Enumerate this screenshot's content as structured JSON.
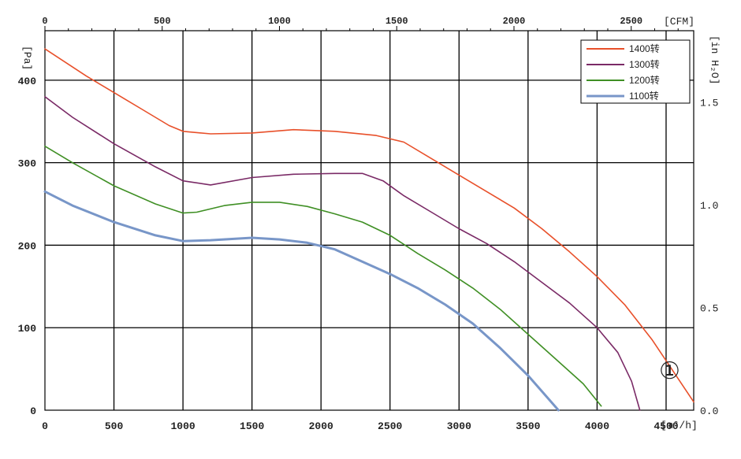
{
  "chart_data": {
    "type": "line",
    "x_unit_label": "[m³/h]",
    "x2_unit_label": "[CFM]",
    "y_unit_label": "[Pa]",
    "y2_unit_label": "[in H₂O]",
    "xlim": [
      0,
      4700
    ],
    "ylim": [
      0,
      460
    ],
    "x_ticks": [
      "0",
      "500",
      "1000",
      "1500",
      "2000",
      "2500",
      "3000",
      "3500",
      "4000",
      "4500"
    ],
    "x_tick_values": [
      0,
      500,
      1000,
      1500,
      2000,
      2500,
      3000,
      3500,
      4000,
      4500
    ],
    "y_ticks": [
      "0",
      "100",
      "200",
      "300",
      "400"
    ],
    "y_tick_values": [
      0,
      100,
      200,
      300,
      400
    ],
    "x2_ticks": [
      "0",
      "500",
      "1000",
      "1500",
      "2000",
      "2500"
    ],
    "x2_tick_values": [
      0,
      500,
      1000,
      1500,
      2000,
      2500
    ],
    "x2_factor": 0.5886,
    "y2_ticks": [
      "0.0",
      "0.5",
      "1.0",
      "1.5"
    ],
    "y2_tick_values": [
      0.0,
      0.5,
      1.0,
      1.5
    ],
    "y2_factor": 249.09,
    "grid": true,
    "legend_position": "top-right",
    "annotation": "①",
    "series": [
      {
        "name": "1400转",
        "color": "#e8502a",
        "x": [
          0,
          300,
          500,
          700,
          900,
          1000,
          1200,
          1500,
          1800,
          2100,
          2400,
          2600,
          2800,
          3000,
          3200,
          3400,
          3600,
          3800,
          4000,
          4200,
          4400,
          4600,
          4700
        ],
        "y": [
          438,
          405,
          385,
          365,
          345,
          338,
          335,
          336,
          340,
          338,
          333,
          325,
          305,
          285,
          265,
          245,
          220,
          192,
          162,
          128,
          85,
          35,
          10
        ]
      },
      {
        "name": "1300转",
        "color": "#7a2a66",
        "x": [
          0,
          200,
          500,
          800,
          1000,
          1200,
          1500,
          1800,
          2100,
          2300,
          2450,
          2600,
          2800,
          3000,
          3200,
          3400,
          3600,
          3800,
          4000,
          4150,
          4250,
          4310
        ],
        "y": [
          380,
          355,
          323,
          295,
          278,
          273,
          282,
          286,
          287,
          287,
          278,
          260,
          240,
          220,
          202,
          180,
          155,
          130,
          100,
          70,
          35,
          0
        ]
      },
      {
        "name": "1200转",
        "color": "#3f8f24",
        "x": [
          0,
          200,
          500,
          800,
          1000,
          1100,
          1300,
          1500,
          1700,
          1900,
          2100,
          2300,
          2500,
          2700,
          2900,
          3100,
          3300,
          3500,
          3700,
          3900,
          4030
        ],
        "y": [
          320,
          300,
          272,
          250,
          239,
          240,
          248,
          252,
          252,
          247,
          238,
          228,
          212,
          190,
          170,
          148,
          122,
          92,
          62,
          32,
          5
        ]
      },
      {
        "name": "1100转",
        "color": "#7896c8",
        "x": [
          0,
          200,
          500,
          800,
          1000,
          1200,
          1500,
          1700,
          1900,
          2100,
          2300,
          2500,
          2700,
          2900,
          3100,
          3300,
          3500,
          3720
        ],
        "y": [
          265,
          248,
          228,
          212,
          205,
          206,
          209,
          207,
          203,
          195,
          180,
          165,
          148,
          128,
          105,
          75,
          42,
          0
        ]
      }
    ]
  }
}
